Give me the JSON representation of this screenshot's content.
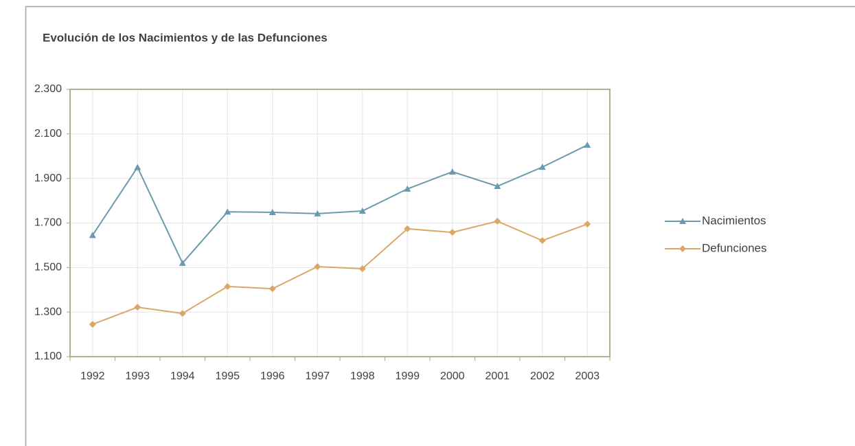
{
  "chart_data": {
    "type": "line",
    "title": "Evolución de los Nacimientos y de las Defunciones",
    "categories": [
      "1992",
      "1993",
      "1994",
      "1995",
      "1996",
      "1997",
      "1998",
      "1999",
      "2000",
      "2001",
      "2002",
      "2003"
    ],
    "series": [
      {
        "name": "Nacimientos",
        "color": "#6b99ad",
        "marker": "triangle",
        "values": [
          1645,
          1950,
          1520,
          1750,
          1748,
          1742,
          1754,
          1853,
          1930,
          1865,
          1951,
          2050
        ]
      },
      {
        "name": "Defunciones",
        "color": "#d9a868",
        "marker": "diamond",
        "values": [
          1245,
          1322,
          1294,
          1415,
          1405,
          1504,
          1495,
          1674,
          1658,
          1708,
          1621,
          1695
        ]
      }
    ],
    "ylim": [
      1100,
      2300
    ],
    "yticks": [
      {
        "value": 1100,
        "label": "1.100"
      },
      {
        "value": 1300,
        "label": "1.300"
      },
      {
        "value": 1500,
        "label": "1.500"
      },
      {
        "value": 1700,
        "label": "1.700"
      },
      {
        "value": 1900,
        "label": "1.900"
      },
      {
        "value": 2100,
        "label": "2.100"
      },
      {
        "value": 2300,
        "label": "2.300"
      }
    ],
    "grid": true,
    "legend": "right"
  }
}
